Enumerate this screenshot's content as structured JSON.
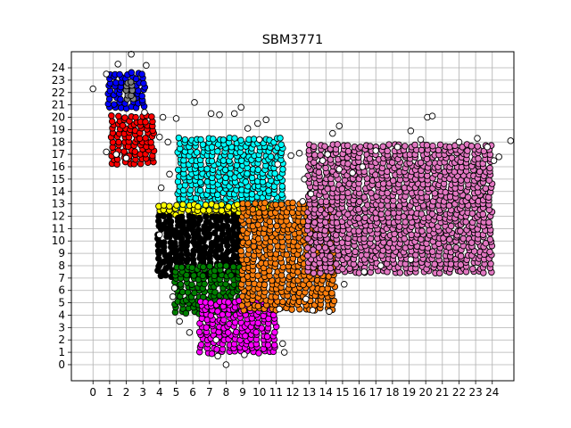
{
  "chart_data": {
    "type": "scatter",
    "title": "SBM3771",
    "xlabel": "",
    "ylabel": "",
    "xlim": [
      -1.3,
      25.3
    ],
    "ylim": [
      -1.3,
      25.3
    ],
    "x_ticks": [
      0,
      1,
      2,
      3,
      4,
      5,
      6,
      7,
      8,
      9,
      10,
      11,
      12,
      13,
      14,
      15,
      16,
      17,
      18,
      19,
      20,
      21,
      22,
      23,
      24
    ],
    "y_ticks": [
      0,
      1,
      2,
      3,
      4,
      5,
      6,
      7,
      8,
      9,
      10,
      11,
      12,
      13,
      14,
      15,
      16,
      17,
      18,
      19,
      20,
      21,
      22,
      23,
      24
    ],
    "grid": true,
    "legend": "none",
    "clusters": [
      {
        "color": "#0000ff",
        "xmin": 1.0,
        "xmax": 3.2,
        "ymin": 20.8,
        "ymax": 23.6
      },
      {
        "color": "#ff0000",
        "xmin": 1.2,
        "xmax": 3.8,
        "ymin": 16.3,
        "ymax": 20.2
      },
      {
        "color": "#00ffff",
        "xmin": 5.2,
        "xmax": 11.5,
        "ymin": 12.8,
        "ymax": 18.5
      },
      {
        "color": "#ffff00",
        "xmin": 4.0,
        "xmax": 11.0,
        "ymin": 12.2,
        "ymax": 12.9
      },
      {
        "color": "#000000",
        "xmin": 4.0,
        "xmax": 9.0,
        "ymin": 7.2,
        "ymax": 12.0
      },
      {
        "color": "#008000",
        "xmin": 5.0,
        "xmax": 8.8,
        "ymin": 4.2,
        "ymax": 8.0
      },
      {
        "color": "#ff00ff",
        "xmin": 6.5,
        "xmax": 11.0,
        "ymin": 1.0,
        "ymax": 5.2
      },
      {
        "color": "#ff7f0e",
        "xmin": 9.0,
        "xmax": 14.5,
        "ymin": 4.5,
        "ymax": 13.0
      },
      {
        "color": "#e377c2",
        "xmin": 13.0,
        "xmax": 24.0,
        "ymin": 7.5,
        "ymax": 18.0
      },
      {
        "color": "#808080",
        "xmin": 2.0,
        "xmax": 2.6,
        "ymin": 21.5,
        "ymax": 23.0
      }
    ],
    "outlier_points": [
      [
        0.0,
        22.3
      ],
      [
        1.5,
        24.3
      ],
      [
        3.2,
        24.2
      ],
      [
        2.3,
        25.1
      ],
      [
        0.8,
        23.5
      ],
      [
        4.2,
        20.0
      ],
      [
        4.0,
        18.4
      ],
      [
        4.5,
        18.0
      ],
      [
        0.8,
        17.2
      ],
      [
        1.4,
        17.0
      ],
      [
        4.6,
        15.4
      ],
      [
        4.1,
        14.3
      ],
      [
        6.1,
        21.2
      ],
      [
        7.1,
        20.3
      ],
      [
        7.6,
        20.2
      ],
      [
        8.5,
        20.3
      ],
      [
        8.9,
        20.8
      ],
      [
        9.9,
        19.5
      ],
      [
        10.4,
        19.8
      ],
      [
        9.3,
        19.1
      ],
      [
        10.0,
        18.2
      ],
      [
        12.4,
        17.1
      ],
      [
        13.8,
        16.5
      ],
      [
        14.4,
        18.7
      ],
      [
        14.8,
        19.3
      ],
      [
        11.1,
        16.2
      ],
      [
        11.9,
        16.9
      ],
      [
        14.1,
        17.0
      ],
      [
        5.0,
        19.9
      ],
      [
        12.7,
        15.0
      ],
      [
        13.1,
        13.8
      ],
      [
        14.8,
        15.8
      ],
      [
        16.2,
        16.0
      ],
      [
        19.1,
        18.9
      ],
      [
        19.7,
        18.2
      ],
      [
        20.1,
        20.0
      ],
      [
        20.4,
        20.1
      ],
      [
        22.0,
        18.0
      ],
      [
        23.1,
        18.3
      ],
      [
        23.7,
        17.6
      ],
      [
        24.1,
        16.5
      ],
      [
        24.4,
        16.8
      ],
      [
        25.1,
        18.1
      ],
      [
        4.0,
        10.5
      ],
      [
        4.8,
        5.5
      ],
      [
        4.9,
        6.2
      ],
      [
        5.2,
        3.5
      ],
      [
        5.8,
        2.6
      ],
      [
        7.4,
        2.0
      ],
      [
        7.5,
        0.7
      ],
      [
        8.0,
        0.0
      ],
      [
        9.1,
        0.8
      ],
      [
        11.4,
        1.7
      ],
      [
        11.5,
        1.0
      ],
      [
        12.8,
        5.3
      ],
      [
        13.2,
        4.4
      ],
      [
        14.2,
        4.3
      ],
      [
        15.1,
        6.5
      ],
      [
        16.3,
        7.5
      ],
      [
        17.3,
        8.0
      ],
      [
        19.1,
        8.5
      ],
      [
        11.2,
        4.5
      ],
      [
        12.6,
        13.2
      ],
      [
        15.6,
        15.5
      ],
      [
        17.0,
        17.3
      ],
      [
        18.3,
        17.6
      ],
      [
        3.1,
        20.4
      ],
      [
        2.0,
        16.7
      ]
    ]
  }
}
